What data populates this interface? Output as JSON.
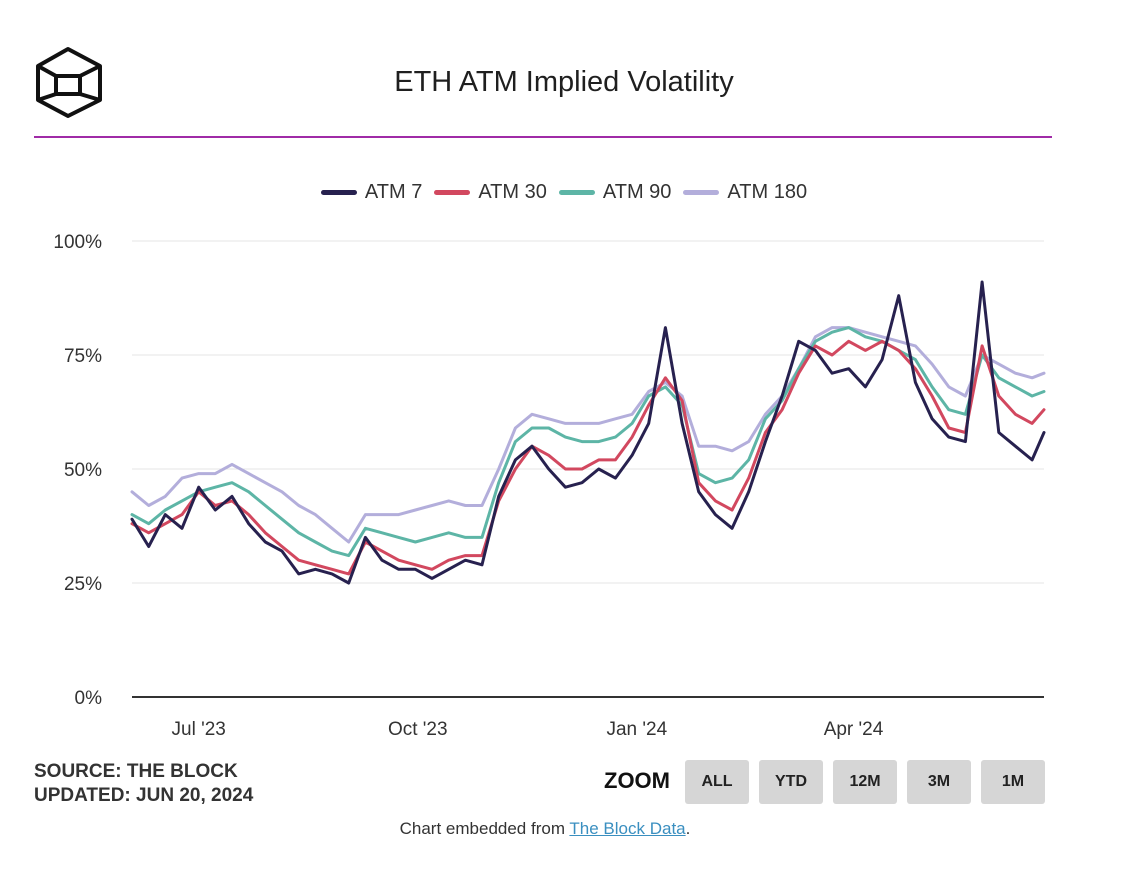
{
  "chart_data": {
    "type": "line",
    "title": "ETH ATM Implied Volatility",
    "ylim": [
      0,
      100
    ],
    "yticks": [
      "0%",
      "25%",
      "50%",
      "75%",
      "100%"
    ],
    "ytick_values": [
      0,
      25,
      50,
      75,
      100
    ],
    "xrange": [
      "2023-06-03",
      "2024-06-20"
    ],
    "xticks": [
      {
        "label": "Jul '23",
        "date": "2023-07-01"
      },
      {
        "label": "Oct '23",
        "date": "2023-10-01"
      },
      {
        "label": "Jan '24",
        "date": "2024-01-01"
      },
      {
        "label": "Apr '24",
        "date": "2024-04-01"
      }
    ],
    "grid": true,
    "legend_position": "top",
    "series": [
      {
        "name": "ATM 7",
        "color": "#27214f",
        "points": [
          [
            "2023-06-03",
            39
          ],
          [
            "2023-06-10",
            33
          ],
          [
            "2023-06-17",
            40
          ],
          [
            "2023-06-24",
            37
          ],
          [
            "2023-07-01",
            46
          ],
          [
            "2023-07-08",
            41
          ],
          [
            "2023-07-15",
            44
          ],
          [
            "2023-07-22",
            38
          ],
          [
            "2023-07-29",
            34
          ],
          [
            "2023-08-05",
            32
          ],
          [
            "2023-08-12",
            27
          ],
          [
            "2023-08-19",
            28
          ],
          [
            "2023-08-26",
            27
          ],
          [
            "2023-09-02",
            25
          ],
          [
            "2023-09-09",
            35
          ],
          [
            "2023-09-16",
            30
          ],
          [
            "2023-09-23",
            28
          ],
          [
            "2023-09-30",
            28
          ],
          [
            "2023-10-07",
            26
          ],
          [
            "2023-10-14",
            28
          ],
          [
            "2023-10-21",
            30
          ],
          [
            "2023-10-28",
            29
          ],
          [
            "2023-11-04",
            44
          ],
          [
            "2023-11-11",
            52
          ],
          [
            "2023-11-18",
            55
          ],
          [
            "2023-11-25",
            50
          ],
          [
            "2023-12-02",
            46
          ],
          [
            "2023-12-09",
            47
          ],
          [
            "2023-12-16",
            50
          ],
          [
            "2023-12-23",
            48
          ],
          [
            "2023-12-30",
            53
          ],
          [
            "2024-01-06",
            60
          ],
          [
            "2024-01-13",
            81
          ],
          [
            "2024-01-20",
            60
          ],
          [
            "2024-01-27",
            45
          ],
          [
            "2024-02-03",
            40
          ],
          [
            "2024-02-10",
            37
          ],
          [
            "2024-02-17",
            45
          ],
          [
            "2024-02-24",
            56
          ],
          [
            "2024-03-02",
            66
          ],
          [
            "2024-03-09",
            78
          ],
          [
            "2024-03-16",
            76
          ],
          [
            "2024-03-23",
            71
          ],
          [
            "2024-03-30",
            72
          ],
          [
            "2024-04-06",
            68
          ],
          [
            "2024-04-13",
            74
          ],
          [
            "2024-04-20",
            88
          ],
          [
            "2024-04-27",
            69
          ],
          [
            "2024-05-04",
            61
          ],
          [
            "2024-05-11",
            57
          ],
          [
            "2024-05-18",
            56
          ],
          [
            "2024-05-25",
            91
          ],
          [
            "2024-06-01",
            58
          ],
          [
            "2024-06-08",
            55
          ],
          [
            "2024-06-15",
            52
          ],
          [
            "2024-06-20",
            58
          ]
        ]
      },
      {
        "name": "ATM 30",
        "color": "#d2485f",
        "points": [
          [
            "2023-06-03",
            38
          ],
          [
            "2023-06-10",
            36
          ],
          [
            "2023-06-17",
            38
          ],
          [
            "2023-06-24",
            40
          ],
          [
            "2023-07-01",
            45
          ],
          [
            "2023-07-08",
            42
          ],
          [
            "2023-07-15",
            43
          ],
          [
            "2023-07-22",
            40
          ],
          [
            "2023-07-29",
            36
          ],
          [
            "2023-08-05",
            33
          ],
          [
            "2023-08-12",
            30
          ],
          [
            "2023-08-19",
            29
          ],
          [
            "2023-08-26",
            28
          ],
          [
            "2023-09-02",
            27
          ],
          [
            "2023-09-09",
            34
          ],
          [
            "2023-09-16",
            32
          ],
          [
            "2023-09-23",
            30
          ],
          [
            "2023-09-30",
            29
          ],
          [
            "2023-10-07",
            28
          ],
          [
            "2023-10-14",
            30
          ],
          [
            "2023-10-21",
            31
          ],
          [
            "2023-10-28",
            31
          ],
          [
            "2023-11-04",
            43
          ],
          [
            "2023-11-11",
            50
          ],
          [
            "2023-11-18",
            55
          ],
          [
            "2023-11-25",
            53
          ],
          [
            "2023-12-02",
            50
          ],
          [
            "2023-12-09",
            50
          ],
          [
            "2023-12-16",
            52
          ],
          [
            "2023-12-23",
            52
          ],
          [
            "2023-12-30",
            57
          ],
          [
            "2024-01-06",
            64
          ],
          [
            "2024-01-13",
            70
          ],
          [
            "2024-01-20",
            65
          ],
          [
            "2024-01-27",
            47
          ],
          [
            "2024-02-03",
            43
          ],
          [
            "2024-02-10",
            41
          ],
          [
            "2024-02-17",
            48
          ],
          [
            "2024-02-24",
            58
          ],
          [
            "2024-03-02",
            63
          ],
          [
            "2024-03-09",
            71
          ],
          [
            "2024-03-16",
            77
          ],
          [
            "2024-03-23",
            75
          ],
          [
            "2024-03-30",
            78
          ],
          [
            "2024-04-06",
            76
          ],
          [
            "2024-04-13",
            78
          ],
          [
            "2024-04-20",
            76
          ],
          [
            "2024-04-27",
            72
          ],
          [
            "2024-05-04",
            66
          ],
          [
            "2024-05-11",
            59
          ],
          [
            "2024-05-18",
            58
          ],
          [
            "2024-05-25",
            77
          ],
          [
            "2024-06-01",
            66
          ],
          [
            "2024-06-08",
            62
          ],
          [
            "2024-06-15",
            60
          ],
          [
            "2024-06-20",
            63
          ]
        ]
      },
      {
        "name": "ATM 90",
        "color": "#5db5a6",
        "points": [
          [
            "2023-06-03",
            40
          ],
          [
            "2023-06-10",
            38
          ],
          [
            "2023-06-17",
            41
          ],
          [
            "2023-06-24",
            43
          ],
          [
            "2023-07-01",
            45
          ],
          [
            "2023-07-08",
            46
          ],
          [
            "2023-07-15",
            47
          ],
          [
            "2023-07-22",
            45
          ],
          [
            "2023-07-29",
            42
          ],
          [
            "2023-08-05",
            39
          ],
          [
            "2023-08-12",
            36
          ],
          [
            "2023-08-19",
            34
          ],
          [
            "2023-08-26",
            32
          ],
          [
            "2023-09-02",
            31
          ],
          [
            "2023-09-09",
            37
          ],
          [
            "2023-09-16",
            36
          ],
          [
            "2023-09-23",
            35
          ],
          [
            "2023-09-30",
            34
          ],
          [
            "2023-10-07",
            35
          ],
          [
            "2023-10-14",
            36
          ],
          [
            "2023-10-21",
            35
          ],
          [
            "2023-10-28",
            35
          ],
          [
            "2023-11-04",
            47
          ],
          [
            "2023-11-11",
            56
          ],
          [
            "2023-11-18",
            59
          ],
          [
            "2023-11-25",
            59
          ],
          [
            "2023-12-02",
            57
          ],
          [
            "2023-12-09",
            56
          ],
          [
            "2023-12-16",
            56
          ],
          [
            "2023-12-23",
            57
          ],
          [
            "2023-12-30",
            60
          ],
          [
            "2024-01-06",
            66
          ],
          [
            "2024-01-13",
            68
          ],
          [
            "2024-01-20",
            64
          ],
          [
            "2024-01-27",
            49
          ],
          [
            "2024-02-03",
            47
          ],
          [
            "2024-02-10",
            48
          ],
          [
            "2024-02-17",
            52
          ],
          [
            "2024-02-24",
            61
          ],
          [
            "2024-03-02",
            65
          ],
          [
            "2024-03-09",
            72
          ],
          [
            "2024-03-16",
            78
          ],
          [
            "2024-03-23",
            80
          ],
          [
            "2024-03-30",
            81
          ],
          [
            "2024-04-06",
            79
          ],
          [
            "2024-04-13",
            78
          ],
          [
            "2024-04-20",
            76
          ],
          [
            "2024-04-27",
            74
          ],
          [
            "2024-05-04",
            68
          ],
          [
            "2024-05-11",
            63
          ],
          [
            "2024-05-18",
            62
          ],
          [
            "2024-05-25",
            75
          ],
          [
            "2024-06-01",
            70
          ],
          [
            "2024-06-08",
            68
          ],
          [
            "2024-06-15",
            66
          ],
          [
            "2024-06-20",
            67
          ]
        ]
      },
      {
        "name": "ATM 180",
        "color": "#b3aedb",
        "points": [
          [
            "2023-06-03",
            45
          ],
          [
            "2023-06-10",
            42
          ],
          [
            "2023-06-17",
            44
          ],
          [
            "2023-06-24",
            48
          ],
          [
            "2023-07-01",
            49
          ],
          [
            "2023-07-08",
            49
          ],
          [
            "2023-07-15",
            51
          ],
          [
            "2023-07-22",
            49
          ],
          [
            "2023-07-29",
            47
          ],
          [
            "2023-08-05",
            45
          ],
          [
            "2023-08-12",
            42
          ],
          [
            "2023-08-19",
            40
          ],
          [
            "2023-08-26",
            37
          ],
          [
            "2023-09-02",
            34
          ],
          [
            "2023-09-09",
            40
          ],
          [
            "2023-09-16",
            40
          ],
          [
            "2023-09-23",
            40
          ],
          [
            "2023-09-30",
            41
          ],
          [
            "2023-10-07",
            42
          ],
          [
            "2023-10-14",
            43
          ],
          [
            "2023-10-21",
            42
          ],
          [
            "2023-10-28",
            42
          ],
          [
            "2023-11-04",
            50
          ],
          [
            "2023-11-11",
            59
          ],
          [
            "2023-11-18",
            62
          ],
          [
            "2023-11-25",
            61
          ],
          [
            "2023-12-02",
            60
          ],
          [
            "2023-12-09",
            60
          ],
          [
            "2023-12-16",
            60
          ],
          [
            "2023-12-23",
            61
          ],
          [
            "2023-12-30",
            62
          ],
          [
            "2024-01-06",
            67
          ],
          [
            "2024-01-13",
            69
          ],
          [
            "2024-01-20",
            66
          ],
          [
            "2024-01-27",
            55
          ],
          [
            "2024-02-03",
            55
          ],
          [
            "2024-02-10",
            54
          ],
          [
            "2024-02-17",
            56
          ],
          [
            "2024-02-24",
            62
          ],
          [
            "2024-03-02",
            66
          ],
          [
            "2024-03-09",
            72
          ],
          [
            "2024-03-16",
            79
          ],
          [
            "2024-03-23",
            81
          ],
          [
            "2024-03-30",
            81
          ],
          [
            "2024-04-06",
            80
          ],
          [
            "2024-04-13",
            79
          ],
          [
            "2024-04-20",
            78
          ],
          [
            "2024-04-27",
            77
          ],
          [
            "2024-05-04",
            73
          ],
          [
            "2024-05-11",
            68
          ],
          [
            "2024-05-18",
            66
          ],
          [
            "2024-05-25",
            75
          ],
          [
            "2024-06-01",
            73
          ],
          [
            "2024-06-08",
            71
          ],
          [
            "2024-06-15",
            70
          ],
          [
            "2024-06-20",
            71
          ]
        ]
      }
    ]
  },
  "footer": {
    "source": "SOURCE: THE BLOCK",
    "updated": "UPDATED: JUN 20, 2024",
    "zoom_label": "ZOOM",
    "zoom_buttons": [
      "ALL",
      "YTD",
      "12M",
      "3M",
      "1M"
    ],
    "embed_prefix": "Chart embedded from ",
    "embed_link": "The Block Data",
    "embed_suffix": "."
  }
}
